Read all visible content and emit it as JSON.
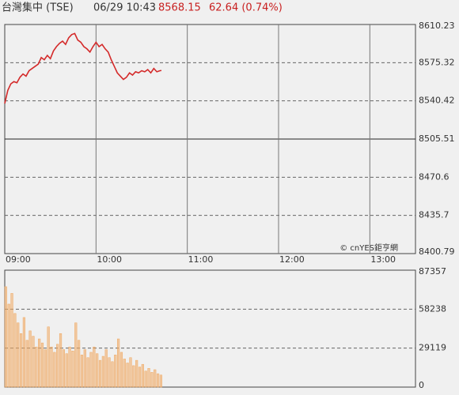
{
  "header": {
    "name": "台灣集中 (TSE)",
    "time": "06/29 10:43",
    "price": "8568.15",
    "change": "62.64 (0.74%)",
    "watermark": "© cnYES鉅亨網"
  },
  "chart_data": [
    {
      "type": "line",
      "color": "#d42a2a",
      "reference_line": 8505.51,
      "xlim": [
        0,
        270
      ],
      "xticks": [
        {
          "value": 0,
          "label": "09:00"
        },
        {
          "value": 60,
          "label": "10:00"
        },
        {
          "value": 120,
          "label": "11:00"
        },
        {
          "value": 180,
          "label": "12:00"
        },
        {
          "value": 240,
          "label": "13:00"
        }
      ],
      "ylim": [
        8400.79,
        8610.23
      ],
      "yticks": [
        8400.79,
        8435.7,
        8470.6,
        8505.51,
        8540.42,
        8575.32,
        8610.23
      ],
      "x": [
        0,
        2,
        4,
        6,
        8,
        10,
        12,
        14,
        16,
        18,
        20,
        22,
        24,
        26,
        28,
        30,
        32,
        34,
        36,
        38,
        40,
        42,
        44,
        46,
        48,
        50,
        52,
        54,
        56,
        58,
        60,
        62,
        64,
        66,
        68,
        70,
        72,
        74,
        76,
        78,
        80,
        82,
        84,
        86,
        88,
        90,
        92,
        94,
        96,
        98,
        100,
        102,
        103
      ],
      "values": [
        8538,
        8550,
        8556,
        8558,
        8557,
        8562,
        8565,
        8563,
        8568,
        8570,
        8572,
        8574,
        8580,
        8578,
        8582,
        8579,
        8586,
        8590,
        8593,
        8595,
        8592,
        8598,
        8601,
        8602,
        8596,
        8594,
        8590,
        8588,
        8585,
        8590,
        8594,
        8590,
        8592,
        8588,
        8585,
        8578,
        8572,
        8566,
        8563,
        8560,
        8562,
        8566,
        8564,
        8567,
        8566,
        8568,
        8567,
        8569,
        8566,
        8570,
        8567,
        8568,
        8568.15
      ]
    },
    {
      "type": "bar",
      "color": "#f0a860",
      "xlim": [
        0,
        270
      ],
      "ylim": [
        0,
        87357
      ],
      "yticks": [
        0,
        29119,
        58238,
        87357
      ],
      "x": [
        0,
        2,
        4,
        6,
        8,
        10,
        12,
        14,
        16,
        18,
        20,
        22,
        24,
        26,
        28,
        30,
        32,
        34,
        36,
        38,
        40,
        42,
        44,
        46,
        48,
        50,
        52,
        54,
        56,
        58,
        60,
        62,
        64,
        66,
        68,
        70,
        72,
        74,
        76,
        78,
        80,
        82,
        84,
        86,
        88,
        90,
        92,
        94,
        96,
        98,
        100,
        102
      ],
      "values": [
        75000,
        62000,
        70000,
        55000,
        48000,
        40000,
        52000,
        35000,
        42000,
        38000,
        30000,
        36000,
        33000,
        28000,
        45000,
        30000,
        26000,
        32000,
        40000,
        28000,
        25000,
        30000,
        27000,
        48000,
        35000,
        24000,
        28000,
        22000,
        26000,
        30000,
        25000,
        20000,
        23000,
        28000,
        22000,
        19000,
        24000,
        36000,
        26000,
        21000,
        18000,
        22000,
        16000,
        20000,
        15000,
        17000,
        12000,
        14000,
        11000,
        13000,
        10000,
        9000
      ]
    }
  ]
}
